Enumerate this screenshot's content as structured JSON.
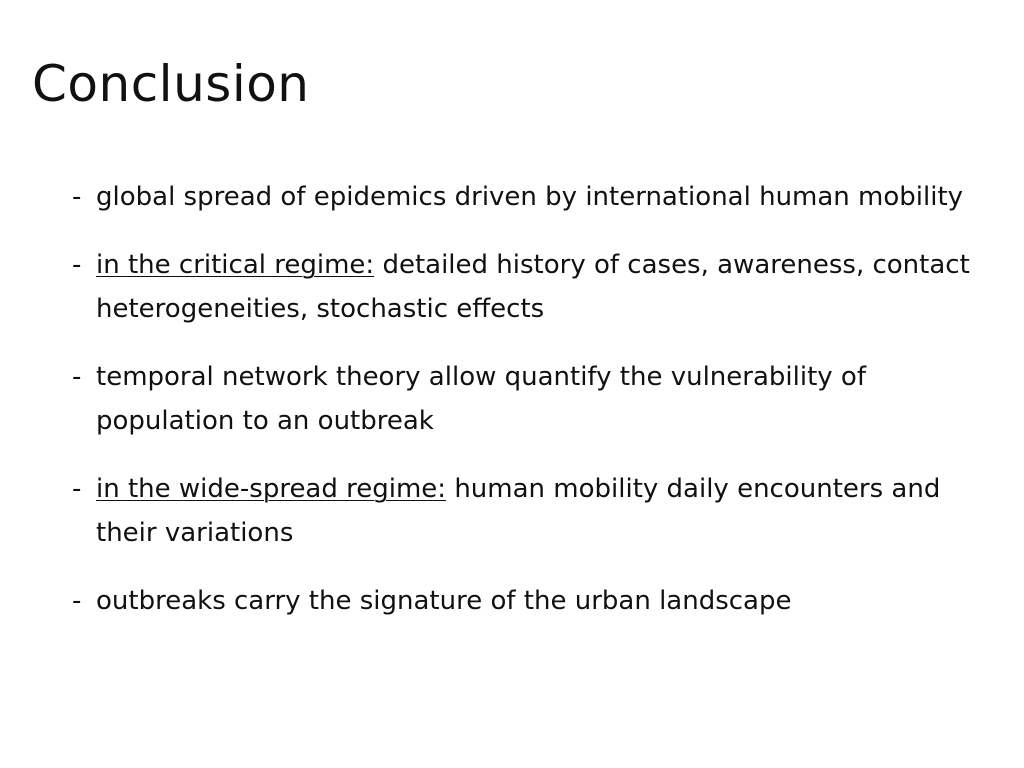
{
  "slide": {
    "title": "Conclusion",
    "bullet_marker": "-",
    "bullets": [
      {
        "lead": "",
        "text": "global spread of epidemics driven by international human mobility"
      },
      {
        "lead": "in the critical regime:",
        "text": "detailed history of cases, awareness, contact heterogeneities, stochastic effects"
      },
      {
        "lead": "",
        "text": "temporal network theory allow quantify the vulnerability of population to an outbreak"
      },
      {
        "lead": "in the wide-spread regime:",
        "text": "human mobility daily encounters and their variations"
      },
      {
        "lead": "",
        "text": "outbreaks carry the signature of the urban landscape"
      }
    ]
  }
}
